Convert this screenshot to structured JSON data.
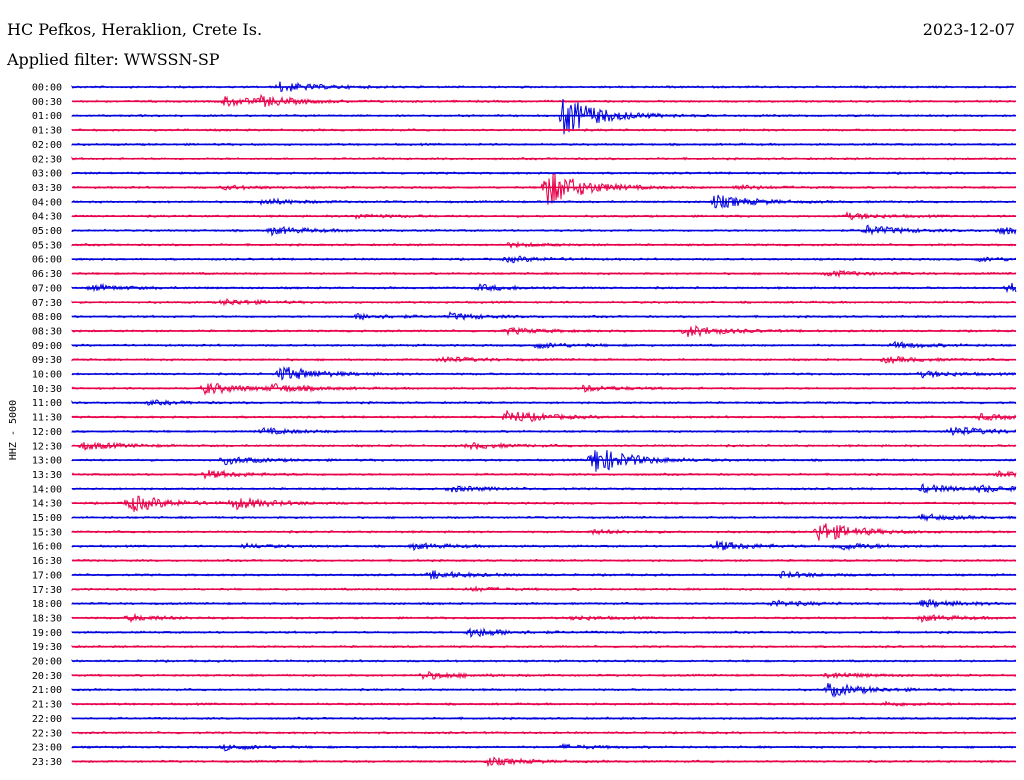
{
  "header": {
    "station": "HC Pefkos, Heraklion, Crete Is.",
    "date": "2023-12-07",
    "filter": "Applied filter: WWSSN-SP"
  },
  "chart_data": {
    "type": "line",
    "title": "HC Pefkos, Heraklion, Crete Is.",
    "channel_label": "HHZ - 5000",
    "trace_colors": [
      "#0000dd",
      "#e8004a"
    ],
    "rows": [
      {
        "label": "00:00",
        "color": "#0000dd",
        "events": [
          {
            "t": 0.22,
            "amp": 0.5
          }
        ]
      },
      {
        "label": "00:30",
        "color": "#e8004a",
        "events": [
          {
            "t": 0.16,
            "amp": 0.5
          },
          {
            "t": 0.2,
            "amp": 0.4
          }
        ]
      },
      {
        "label": "01:00",
        "color": "#0000dd",
        "events": [
          {
            "t": 0.52,
            "amp": 2.0
          }
        ]
      },
      {
        "label": "01:30",
        "color": "#e8004a",
        "events": []
      },
      {
        "label": "02:00",
        "color": "#0000dd",
        "events": []
      },
      {
        "label": "02:30",
        "color": "#e8004a",
        "events": []
      },
      {
        "label": "03:00",
        "color": "#0000dd",
        "events": []
      },
      {
        "label": "03:30",
        "color": "#e8004a",
        "events": [
          {
            "t": 0.16,
            "amp": 0.2
          },
          {
            "t": 0.5,
            "amp": 2.0
          },
          {
            "t": 0.7,
            "amp": 0.2
          }
        ]
      },
      {
        "label": "04:00",
        "color": "#0000dd",
        "events": [
          {
            "t": 0.2,
            "amp": 0.3
          },
          {
            "t": 0.68,
            "amp": 0.7
          }
        ]
      },
      {
        "label": "04:30",
        "color": "#e8004a",
        "events": [
          {
            "t": 0.3,
            "amp": 0.2
          },
          {
            "t": 0.82,
            "amp": 0.3
          }
        ]
      },
      {
        "label": "05:00",
        "color": "#0000dd",
        "events": [
          {
            "t": 0.21,
            "amp": 0.4
          },
          {
            "t": 0.84,
            "amp": 0.5
          },
          {
            "t": 0.98,
            "amp": 0.4
          }
        ]
      },
      {
        "label": "05:30",
        "color": "#e8004a",
        "events": [
          {
            "t": 0.46,
            "amp": 0.2
          }
        ]
      },
      {
        "label": "06:00",
        "color": "#0000dd",
        "events": [
          {
            "t": 0.46,
            "amp": 0.3
          },
          {
            "t": 0.96,
            "amp": 0.2
          }
        ]
      },
      {
        "label": "06:30",
        "color": "#e8004a",
        "events": [
          {
            "t": 0.8,
            "amp": 0.3
          }
        ]
      },
      {
        "label": "07:00",
        "color": "#0000dd",
        "events": [
          {
            "t": 0.02,
            "amp": 0.3
          },
          {
            "t": 0.43,
            "amp": 0.3
          },
          {
            "t": 0.99,
            "amp": 0.5
          }
        ]
      },
      {
        "label": "07:30",
        "color": "#e8004a",
        "events": [
          {
            "t": 0.16,
            "amp": 0.3
          }
        ]
      },
      {
        "label": "08:00",
        "color": "#0000dd",
        "events": [
          {
            "t": 0.3,
            "amp": 0.3
          },
          {
            "t": 0.4,
            "amp": 0.3
          }
        ]
      },
      {
        "label": "08:30",
        "color": "#e8004a",
        "events": [
          {
            "t": 0.46,
            "amp": 0.3
          },
          {
            "t": 0.65,
            "amp": 0.6
          }
        ]
      },
      {
        "label": "09:00",
        "color": "#0000dd",
        "events": [
          {
            "t": 0.49,
            "amp": 0.3
          },
          {
            "t": 0.87,
            "amp": 0.3
          }
        ]
      },
      {
        "label": "09:30",
        "color": "#e8004a",
        "events": [
          {
            "t": 0.39,
            "amp": 0.3
          },
          {
            "t": 0.86,
            "amp": 0.3
          }
        ]
      },
      {
        "label": "10:00",
        "color": "#0000dd",
        "events": [
          {
            "t": 0.22,
            "amp": 0.8
          },
          {
            "t": 0.9,
            "amp": 0.3
          }
        ]
      },
      {
        "label": "10:30",
        "color": "#e8004a",
        "events": [
          {
            "t": 0.14,
            "amp": 0.6
          },
          {
            "t": 0.21,
            "amp": 0.4
          },
          {
            "t": 0.54,
            "amp": 0.3
          }
        ]
      },
      {
        "label": "11:00",
        "color": "#0000dd",
        "events": [
          {
            "t": 0.08,
            "amp": 0.2
          }
        ]
      },
      {
        "label": "11:30",
        "color": "#e8004a",
        "events": [
          {
            "t": 0.46,
            "amp": 0.7
          },
          {
            "t": 0.96,
            "amp": 0.3
          }
        ]
      },
      {
        "label": "12:00",
        "color": "#0000dd",
        "events": [
          {
            "t": 0.2,
            "amp": 0.3
          },
          {
            "t": 0.93,
            "amp": 0.5
          }
        ]
      },
      {
        "label": "12:30",
        "color": "#e8004a",
        "events": [
          {
            "t": 0.01,
            "amp": 0.4
          },
          {
            "t": 0.42,
            "amp": 0.3
          }
        ]
      },
      {
        "label": "13:00",
        "color": "#0000dd",
        "events": [
          {
            "t": 0.16,
            "amp": 0.4
          },
          {
            "t": 0.55,
            "amp": 1.5
          }
        ]
      },
      {
        "label": "13:30",
        "color": "#e8004a",
        "events": [
          {
            "t": 0.14,
            "amp": 0.4
          },
          {
            "t": 0.98,
            "amp": 0.3
          }
        ]
      },
      {
        "label": "14:00",
        "color": "#0000dd",
        "events": [
          {
            "t": 0.4,
            "amp": 0.3
          },
          {
            "t": 0.9,
            "amp": 0.4
          },
          {
            "t": 0.96,
            "amp": 0.3
          }
        ]
      },
      {
        "label": "14:30",
        "color": "#e8004a",
        "events": [
          {
            "t": 0.06,
            "amp": 0.9
          },
          {
            "t": 0.17,
            "amp": 0.6
          }
        ]
      },
      {
        "label": "15:00",
        "color": "#0000dd",
        "events": [
          {
            "t": 0.9,
            "amp": 0.3
          }
        ]
      },
      {
        "label": "15:30",
        "color": "#e8004a",
        "events": [
          {
            "t": 0.55,
            "amp": 0.2
          },
          {
            "t": 0.79,
            "amp": 1.1
          }
        ]
      },
      {
        "label": "16:00",
        "color": "#0000dd",
        "events": [
          {
            "t": 0.18,
            "amp": 0.2
          },
          {
            "t": 0.36,
            "amp": 0.3
          },
          {
            "t": 0.68,
            "amp": 0.5
          },
          {
            "t": 0.81,
            "amp": 0.4
          }
        ]
      },
      {
        "label": "16:30",
        "color": "#e8004a",
        "events": []
      },
      {
        "label": "17:00",
        "color": "#0000dd",
        "events": [
          {
            "t": 0.38,
            "amp": 0.4
          },
          {
            "t": 0.75,
            "amp": 0.3
          }
        ]
      },
      {
        "label": "17:30",
        "color": "#e8004a",
        "events": [
          {
            "t": 0.42,
            "amp": 0.2
          }
        ]
      },
      {
        "label": "18:00",
        "color": "#0000dd",
        "events": [
          {
            "t": 0.74,
            "amp": 0.3
          },
          {
            "t": 0.9,
            "amp": 0.4
          }
        ]
      },
      {
        "label": "18:30",
        "color": "#e8004a",
        "events": [
          {
            "t": 0.06,
            "amp": 0.3
          },
          {
            "t": 0.53,
            "amp": 0.2
          },
          {
            "t": 0.9,
            "amp": 0.3
          }
        ]
      },
      {
        "label": "19:00",
        "color": "#0000dd",
        "events": [
          {
            "t": 0.42,
            "amp": 0.5
          }
        ]
      },
      {
        "label": "19:30",
        "color": "#e8004a",
        "events": []
      },
      {
        "label": "20:00",
        "color": "#0000dd",
        "events": []
      },
      {
        "label": "20:30",
        "color": "#e8004a",
        "events": [
          {
            "t": 0.37,
            "amp": 0.4
          },
          {
            "t": 0.8,
            "amp": 0.3
          }
        ]
      },
      {
        "label": "21:00",
        "color": "#0000dd",
        "events": [
          {
            "t": 0.8,
            "amp": 0.7
          }
        ]
      },
      {
        "label": "21:30",
        "color": "#e8004a",
        "events": [
          {
            "t": 0.86,
            "amp": 0.2
          }
        ]
      },
      {
        "label": "22:00",
        "color": "#0000dd",
        "events": []
      },
      {
        "label": "22:30",
        "color": "#e8004a",
        "events": []
      },
      {
        "label": "23:00",
        "color": "#0000dd",
        "events": [
          {
            "t": 0.16,
            "amp": 0.3
          },
          {
            "t": 0.52,
            "amp": 0.2
          }
        ]
      },
      {
        "label": "23:30",
        "color": "#e8004a",
        "events": [
          {
            "t": 0.44,
            "amp": 0.4
          }
        ]
      }
    ]
  }
}
